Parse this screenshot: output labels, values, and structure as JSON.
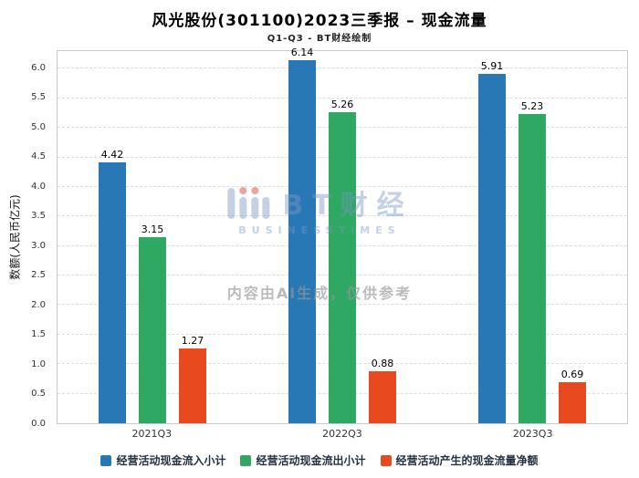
{
  "chart_data": {
    "type": "bar",
    "title": "风光股份(301100)2023三季报 – 现金流量",
    "subtitle": "Q1-Q3 - BT财经绘制",
    "categories": [
      "2021Q3",
      "2022Q3",
      "2023Q3"
    ],
    "series": [
      {
        "name": "经营活动现金流入小计",
        "color": "#2878B5",
        "values": [
          4.42,
          6.14,
          5.91
        ]
      },
      {
        "name": "经营活动现金流出小计",
        "color": "#2EA863",
        "values": [
          3.15,
          5.26,
          5.23
        ]
      },
      {
        "name": "经营活动产生的现金流量净额",
        "color": "#E8491F",
        "values": [
          1.27,
          0.88,
          0.69
        ]
      }
    ],
    "ylabel": "数额(人民币亿元)",
    "ylim": [
      0,
      6.0
    ],
    "ytick_step": 0.5,
    "grid": true,
    "legend_position": "bottom"
  },
  "watermark": {
    "logo_text": "BT财经",
    "logo_sub": "BUSINESSTIMES",
    "ai_note": "内容由AI生成，仅供参考"
  }
}
